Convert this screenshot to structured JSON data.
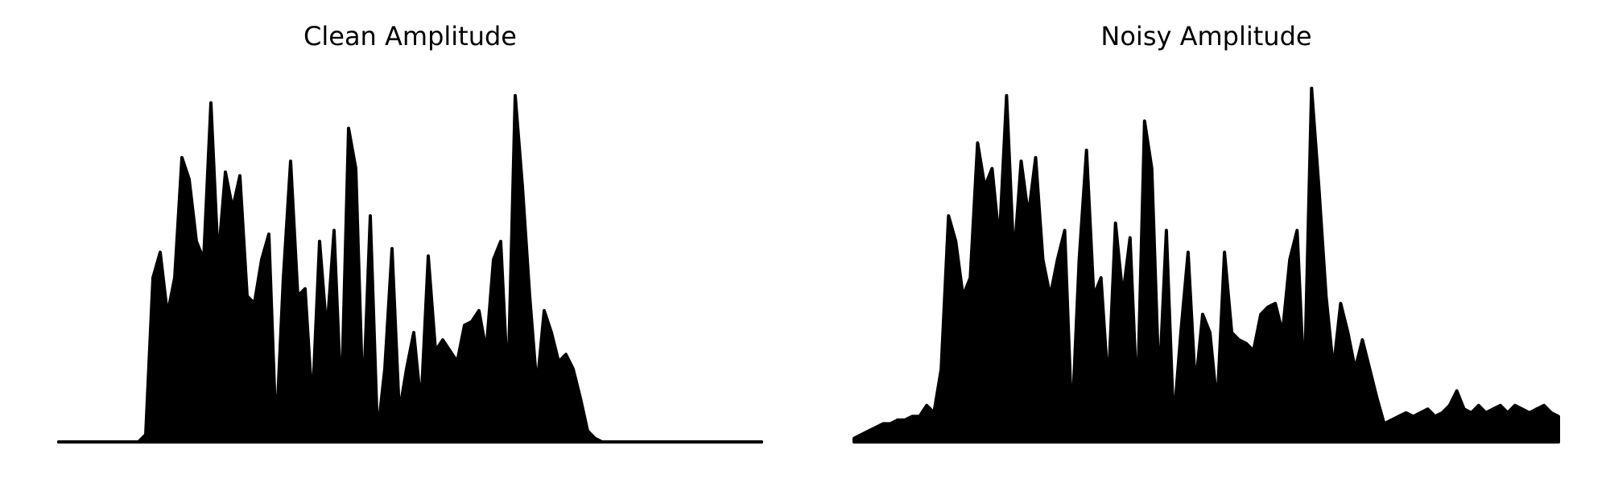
{
  "chart_data": [
    {
      "type": "area",
      "title": "Clean Amplitude",
      "color": "#000000",
      "values": [
        0,
        0,
        0,
        0,
        0,
        0,
        0,
        0,
        0,
        0,
        0,
        0,
        0.02,
        0.45,
        0.52,
        0.35,
        0.45,
        0.78,
        0.72,
        0.55,
        0.5,
        0.93,
        0.5,
        0.74,
        0.64,
        0.73,
        0.4,
        0.38,
        0.5,
        0.57,
        0.02,
        0.45,
        0.77,
        0.4,
        0.42,
        0.1,
        0.55,
        0.3,
        0.58,
        0.1,
        0.86,
        0.75,
        0.1,
        0.62,
        0.02,
        0.2,
        0.53,
        0.08,
        0.2,
        0.3,
        0.1,
        0.51,
        0.25,
        0.28,
        0.25,
        0.22,
        0.32,
        0.33,
        0.36,
        0.25,
        0.5,
        0.55,
        0.15,
        0.95,
        0.7,
        0.4,
        0.15,
        0.36,
        0.3,
        0.22,
        0.24,
        0.2,
        0.12,
        0.03,
        0.01,
        0,
        0,
        0,
        0,
        0,
        0,
        0,
        0,
        0,
        0,
        0,
        0,
        0,
        0,
        0,
        0,
        0,
        0,
        0,
        0,
        0,
        0,
        0
      ]
    },
    {
      "type": "area",
      "title": "Noisy Amplitude",
      "color": "#000000",
      "values": [
        0.01,
        0.02,
        0.03,
        0.04,
        0.05,
        0.05,
        0.06,
        0.06,
        0.07,
        0.07,
        0.1,
        0.08,
        0.2,
        0.62,
        0.55,
        0.4,
        0.45,
        0.82,
        0.7,
        0.75,
        0.55,
        0.95,
        0.5,
        0.77,
        0.62,
        0.78,
        0.5,
        0.4,
        0.5,
        0.58,
        0.05,
        0.5,
        0.8,
        0.4,
        0.45,
        0.15,
        0.6,
        0.4,
        0.56,
        0.1,
        0.88,
        0.75,
        0.15,
        0.58,
        0.05,
        0.3,
        0.52,
        0.15,
        0.35,
        0.3,
        0.1,
        0.52,
        0.3,
        0.28,
        0.27,
        0.25,
        0.35,
        0.37,
        0.38,
        0.3,
        0.5,
        0.58,
        0.15,
        0.97,
        0.7,
        0.4,
        0.2,
        0.38,
        0.3,
        0.2,
        0.28,
        0.2,
        0.12,
        0.05,
        0.06,
        0.07,
        0.08,
        0.07,
        0.08,
        0.09,
        0.07,
        0.08,
        0.1,
        0.14,
        0.09,
        0.08,
        0.1,
        0.08,
        0.09,
        0.1,
        0.08,
        0.1,
        0.09,
        0.08,
        0.09,
        0.1,
        0.08,
        0.07
      ]
    }
  ]
}
